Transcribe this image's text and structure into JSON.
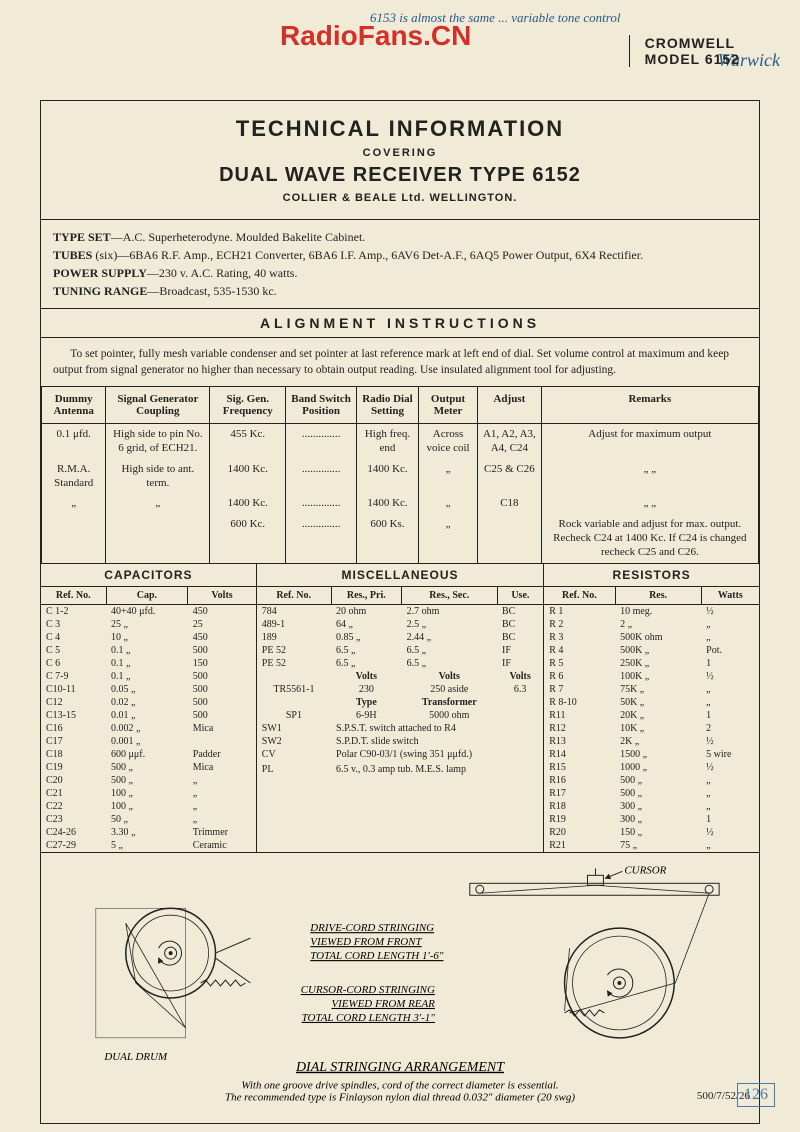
{
  "watermark": "RadioFans.CN",
  "handwriting_top": "6153 is almost the same ... variable tone control",
  "handwriting_right": "Warwick",
  "header": {
    "brand": "CROMWELL",
    "model": "MODEL 6152"
  },
  "title": {
    "main": "TECHNICAL INFORMATION",
    "covering": "COVERING",
    "sub": "DUAL WAVE RECEIVER TYPE 6152",
    "company": "COLLIER & BEALE Ltd. WELLINGTON."
  },
  "specs": {
    "type_set": "A.C. Superheterodyne. Moulded Bakelite Cabinet.",
    "tubes": "(six)—6BA6 R.F. Amp., ECH21 Converter, 6BA6 I.F. Amp., 6AV6 Det-A.F., 6AQ5 Power Output, 6X4 Rectifier.",
    "power": "230 v. A.C. Rating, 40 watts.",
    "tuning": "Broadcast, 535-1530 kc."
  },
  "alignment": {
    "heading": "ALIGNMENT   INSTRUCTIONS",
    "text": "To set pointer, fully mesh variable condenser and set pointer at last reference mark at left end of dial. Set volume control at maximum and keep output from signal generator no higher than necessary to obtain output reading. Use insulated alignment tool for adjusting.",
    "headers": [
      "Dummy Antenna",
      "Signal Generator Coupling",
      "Sig. Gen. Frequency",
      "Band Switch Position",
      "Radio Dial Setting",
      "Output Meter",
      "Adjust",
      "Remarks"
    ],
    "rows": [
      [
        "0.1 μfd.",
        "High side to pin No. 6 grid, of ECH21.",
        "455 Kc.",
        "..............",
        "High freq. end",
        "Across voice coil",
        "A1, A2, A3, A4, C24",
        "Adjust for maximum output"
      ],
      [
        "R.M.A. Standard",
        "High side to ant. term.",
        "1400 Kc.",
        "..............",
        "1400 Kc.",
        "„",
        "C25 & C26",
        "„       „"
      ],
      [
        "„",
        "„",
        "1400 Kc.",
        "..............",
        "1400 Kc.",
        "„",
        "C18",
        "„       „"
      ],
      [
        "",
        "",
        "600 Kc.",
        "..............",
        "600 Ks.",
        "„",
        "",
        "Rock variable and adjust for max. output. Recheck C24 at 1400 Kc. If C24 is changed recheck C25 and C26."
      ]
    ]
  },
  "capacitors": {
    "heading": "CAPACITORS",
    "headers": [
      "Ref. No.",
      "Cap.",
      "Volts"
    ],
    "rows": [
      [
        "C 1-2",
        "40+40 μfd.",
        "450"
      ],
      [
        "C 3",
        "25     „",
        "25"
      ],
      [
        "C 4",
        "10     „",
        "450"
      ],
      [
        "C 5",
        "0.1    „",
        "500"
      ],
      [
        "C 6",
        "0.1    „",
        "150"
      ],
      [
        "C 7-9",
        "0.1    „",
        "500"
      ],
      [
        "C10-11",
        "0.05   „",
        "500"
      ],
      [
        "C12",
        "0.02   „",
        "500"
      ],
      [
        "C13-15",
        "0.01   „",
        "500"
      ],
      [
        "C16",
        "0.002  „",
        "Mica"
      ],
      [
        "C17",
        "0.001  „",
        ""
      ],
      [
        "C18",
        "600  μμf.",
        "Padder"
      ],
      [
        "C19",
        "500    „",
        "Mica"
      ],
      [
        "C20",
        "500    „",
        "„"
      ],
      [
        "C21",
        "100    „",
        "„"
      ],
      [
        "C22",
        "100    „",
        "„"
      ],
      [
        "C23",
        "50     „",
        "„"
      ],
      [
        "C24-26",
        "3.30  „",
        "Trimmer"
      ],
      [
        "C27-29",
        "5     „",
        "Ceramic"
      ]
    ]
  },
  "misc": {
    "heading": "MISCELLANEOUS",
    "headers": [
      "Ref. No.",
      "Res., Pri.",
      "Res., Sec.",
      "Use."
    ],
    "rows": [
      [
        "784",
        "20 ohm",
        "2.7 ohm",
        "BC"
      ],
      [
        "489-1",
        "64   „",
        "2.5   „",
        "BC"
      ],
      [
        "189",
        "0.85 „",
        "2.44  „",
        "BC"
      ],
      [
        "PE 52",
        "6.5  „",
        "6.5   „",
        "IF"
      ],
      [
        "PE 52",
        "6.5  „",
        "6.5   „",
        "IF"
      ]
    ],
    "tx_label1": "Volts",
    "tx_label2": "Volts",
    "tx_label3": "Volts",
    "tx_ref": "TR5561-1",
    "tx_v1": "230",
    "tx_v2": "250 aside",
    "tx_v3": "6.3",
    "type_label": "Type",
    "trans_label": "Transformer",
    "sp_ref": "SP1",
    "sp_type": "6-9H",
    "sp_ohm": "5000 ohm",
    "sw1": "SW1",
    "sw1_d": "S.P.S.T. switch attached to R4",
    "sw2": "SW2",
    "sw2_d": "S.P.D.T. slide switch",
    "cv": "CV",
    "cv_d": "Polar C90-03/1 (swing 351 μμfd.)",
    "pl": "PL",
    "pl_d": "6.5 v., 0.3 amp tub. M.E.S. lamp"
  },
  "resistors": {
    "heading": "RESISTORS",
    "headers": [
      "Ref. No.",
      "Res.",
      "Watts"
    ],
    "rows": [
      [
        "R 1",
        "10   meg.",
        "½"
      ],
      [
        "R 2",
        "2      „",
        "„"
      ],
      [
        "R 3",
        "500K ohm",
        "„"
      ],
      [
        "R 4",
        "500K   „",
        "Pot."
      ],
      [
        "R 5",
        "250K   „",
        "1"
      ],
      [
        "R 6",
        "100K   „",
        "½"
      ],
      [
        "R 7",
        "75K    „",
        "„"
      ],
      [
        "R 8-10",
        "50K    „",
        "„"
      ],
      [
        "R11",
        "20K    „",
        "1"
      ],
      [
        "R12",
        "10K    „",
        "2"
      ],
      [
        "R13",
        "2K     „",
        "½"
      ],
      [
        "R14",
        "1500   „",
        "5 wire"
      ],
      [
        "R15",
        "1000   „",
        "½"
      ],
      [
        "R16",
        "500    „",
        "„"
      ],
      [
        "R17",
        "500    „",
        "„"
      ],
      [
        "R18",
        "300    „",
        "„"
      ],
      [
        "R19",
        "300    „",
        "1"
      ],
      [
        "R20",
        "150    „",
        "½"
      ],
      [
        "R21",
        "75     „",
        "„"
      ]
    ]
  },
  "diagram": {
    "drive": "DRIVE-CORD STRINGING VIEWED FROM FRONT TOTAL CORD LENGTH 1'-6\"",
    "dual": "DUAL DRUM",
    "cursor_label": "CURSOR",
    "cursor": "CURSOR-CORD STRINGING VIEWED FROM REAR TOTAL CORD LENGTH 3'-1\"",
    "title": "DIAL STRINGING ARRANGEMENT",
    "note1": "With one groove drive spindles, cord of the correct diameter is essential.",
    "note2": "The recommended type is Finlayson nylon dial thread 0.032\" diameter (20 swg)"
  },
  "footer": "500/7/52/26",
  "page_num": "126"
}
